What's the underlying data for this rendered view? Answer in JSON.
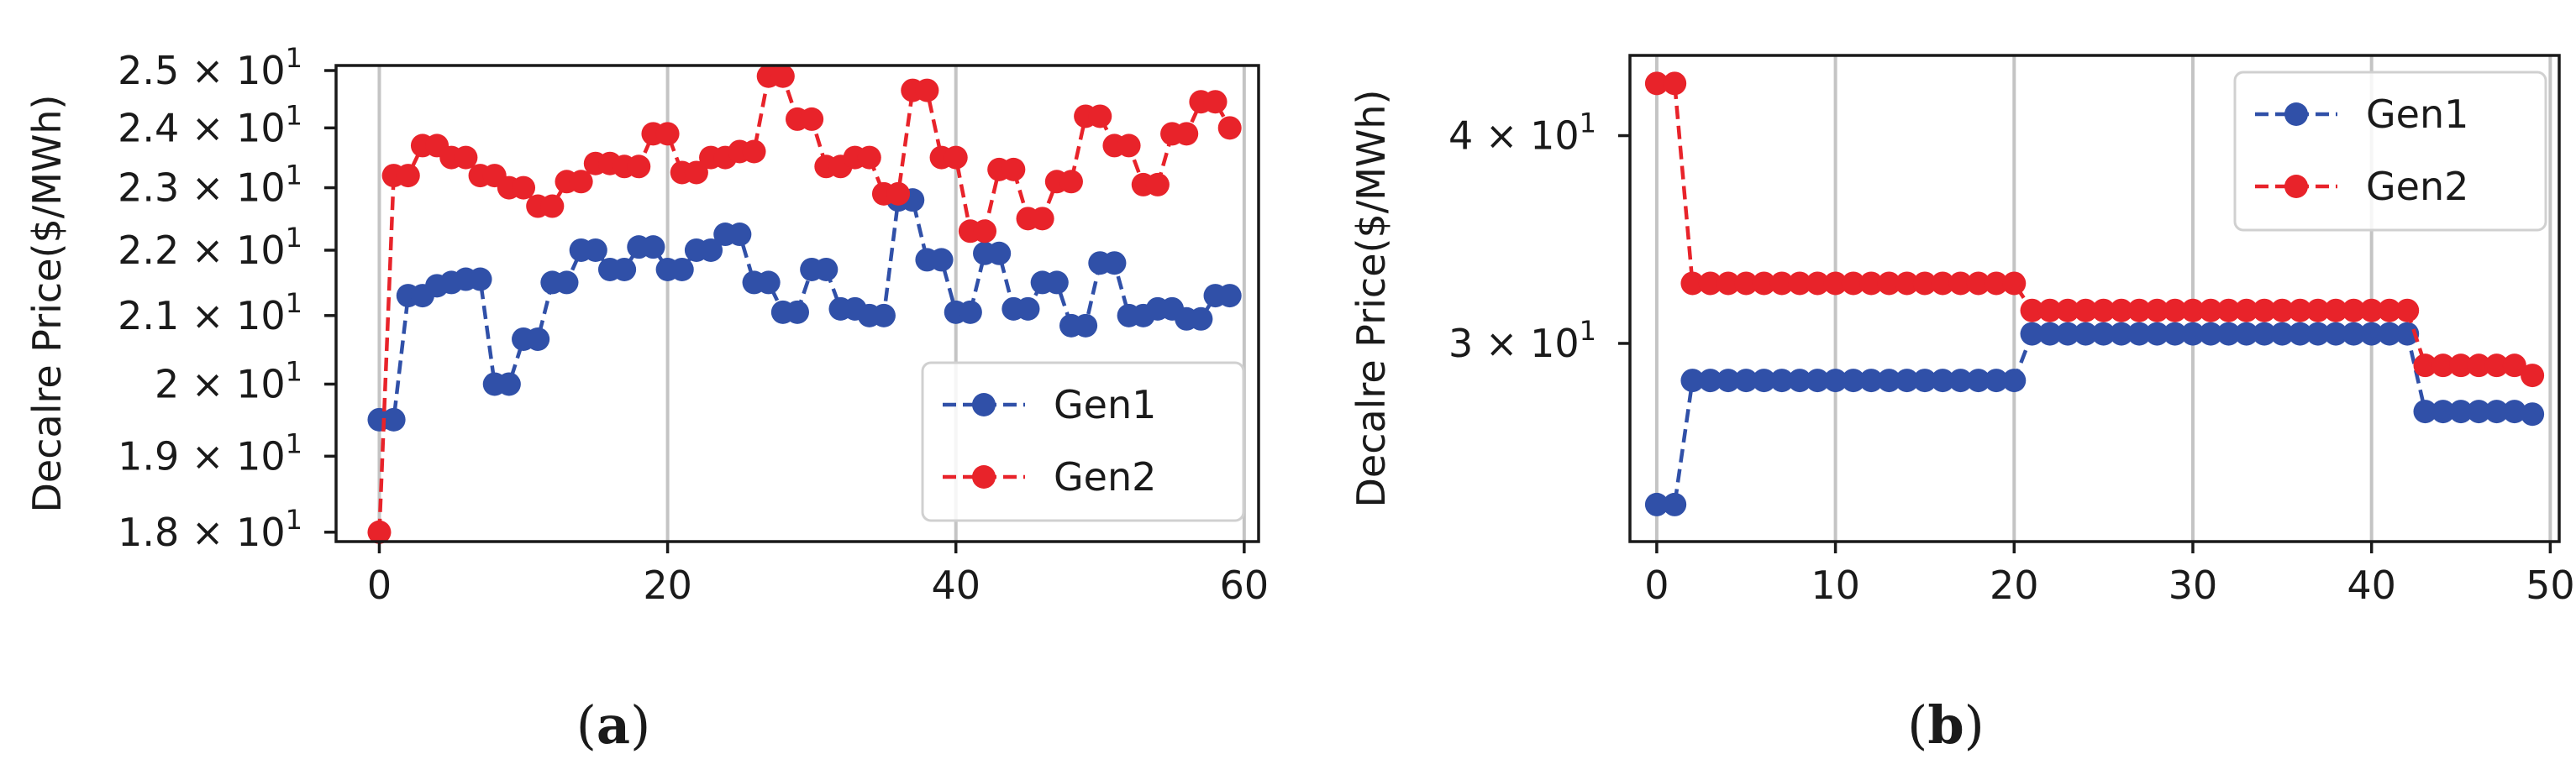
{
  "chart_data": [
    {
      "type": "line",
      "panel_label": "a",
      "title": "",
      "xlabel": "",
      "ylabel": "Decalre Price($/MWh)",
      "yscale": "log",
      "xlim": [
        -3,
        61
      ],
      "ylim": [
        17.88,
        25.09
      ],
      "xticks": [
        0,
        20,
        40,
        60
      ],
      "yticks": [
        {
          "value": 18,
          "mantissa": "1.8"
        },
        {
          "value": 19,
          "mantissa": "1.9"
        },
        {
          "value": 20,
          "mantissa": "2"
        },
        {
          "value": 21,
          "mantissa": "2.1"
        },
        {
          "value": 22,
          "mantissa": "2.2"
        },
        {
          "value": 23,
          "mantissa": "2.3"
        },
        {
          "value": 24,
          "mantissa": "2.4"
        },
        {
          "value": 25,
          "mantissa": "2.5"
        }
      ],
      "tick_base": "× 10",
      "tick_exponent": "1",
      "grid": "x",
      "legend": "lower-right",
      "series": [
        {
          "name": "Gen1",
          "color": "#3050a8",
          "x": [
            0,
            1,
            2,
            3,
            4,
            5,
            6,
            7,
            8,
            9,
            10,
            11,
            12,
            13,
            14,
            15,
            16,
            17,
            18,
            19,
            20,
            21,
            22,
            23,
            24,
            25,
            26,
            27,
            28,
            29,
            30,
            31,
            32,
            33,
            34,
            35,
            36,
            37,
            38,
            39,
            40,
            41,
            42,
            43,
            44,
            45,
            46,
            47,
            48,
            49,
            50,
            51,
            52,
            53,
            54,
            55,
            56,
            57,
            58,
            59
          ],
          "y": [
            19.5,
            19.5,
            21.3,
            21.3,
            21.45,
            21.5,
            21.55,
            21.55,
            20,
            20,
            20.65,
            20.65,
            21.5,
            21.5,
            22,
            22,
            21.7,
            21.7,
            22.05,
            22.05,
            21.7,
            21.7,
            22,
            22,
            22.25,
            22.25,
            21.5,
            21.5,
            21.05,
            21.05,
            21.7,
            21.7,
            21.1,
            21.1,
            21.0,
            21.0,
            22.8,
            22.8,
            21.85,
            21.85,
            21.05,
            21.05,
            21.95,
            21.95,
            21.1,
            21.1,
            21.5,
            21.5,
            20.85,
            20.85,
            21.8,
            21.8,
            21.0,
            21.0,
            21.1,
            21.1,
            20.95,
            20.95,
            21.3,
            21.3
          ]
        },
        {
          "name": "Gen2",
          "color": "#e8232a",
          "x": [
            0,
            1,
            2,
            3,
            4,
            5,
            6,
            7,
            8,
            9,
            10,
            11,
            12,
            13,
            14,
            15,
            16,
            17,
            18,
            19,
            20,
            21,
            22,
            23,
            24,
            25,
            26,
            27,
            28,
            29,
            30,
            31,
            32,
            33,
            34,
            35,
            36,
            37,
            38,
            39,
            40,
            41,
            42,
            43,
            44,
            45,
            46,
            47,
            48,
            49,
            50,
            51,
            52,
            53,
            54,
            55,
            56,
            57,
            58,
            59
          ],
          "y": [
            18,
            23.2,
            23.2,
            23.7,
            23.7,
            23.5,
            23.5,
            23.2,
            23.2,
            23.0,
            23.0,
            22.7,
            22.7,
            23.1,
            23.1,
            23.4,
            23.4,
            23.35,
            23.35,
            23.9,
            23.9,
            23.25,
            23.25,
            23.5,
            23.5,
            23.6,
            23.6,
            24.9,
            24.9,
            24.15,
            24.15,
            23.35,
            23.35,
            23.5,
            23.5,
            22.9,
            22.9,
            24.65,
            24.65,
            23.5,
            23.5,
            22.3,
            22.3,
            23.3,
            23.3,
            22.5,
            22.5,
            23.1,
            23.1,
            24.2,
            24.2,
            23.7,
            23.7,
            23.05,
            23.05,
            23.9,
            23.9,
            24.45,
            24.45,
            24.0
          ]
        }
      ]
    },
    {
      "type": "line",
      "panel_label": "b",
      "title": "",
      "xlabel": "",
      "ylabel": "Decalre Price($/MWh)",
      "yscale": "log",
      "xlim": [
        -1.5,
        50.5
      ],
      "ylim": [
        22.8,
        44.7
      ],
      "xticks": [
        0,
        10,
        20,
        30,
        40,
        50
      ],
      "yticks": [
        {
          "value": 30,
          "mantissa": "3"
        },
        {
          "value": 40,
          "mantissa": "4"
        }
      ],
      "tick_base": "× 10",
      "tick_exponent": "1",
      "grid": "x",
      "legend": "upper-right",
      "series": [
        {
          "name": "Gen1",
          "color": "#3050a8",
          "x": [
            0,
            1,
            2,
            3,
            4,
            5,
            6,
            7,
            8,
            9,
            10,
            11,
            12,
            13,
            14,
            15,
            16,
            17,
            18,
            19,
            20,
            21,
            22,
            23,
            24,
            25,
            26,
            27,
            28,
            29,
            30,
            31,
            32,
            33,
            34,
            35,
            36,
            37,
            38,
            39,
            40,
            41,
            42,
            43,
            44,
            45,
            46,
            47,
            48,
            49
          ],
          "y": [
            24,
            24,
            28.5,
            28.5,
            28.5,
            28.5,
            28.5,
            28.5,
            28.5,
            28.5,
            28.5,
            28.5,
            28.5,
            28.5,
            28.5,
            28.5,
            28.5,
            28.5,
            28.5,
            28.5,
            28.5,
            30.4,
            30.4,
            30.4,
            30.4,
            30.4,
            30.4,
            30.4,
            30.4,
            30.4,
            30.4,
            30.4,
            30.4,
            30.4,
            30.4,
            30.4,
            30.4,
            30.4,
            30.4,
            30.4,
            30.4,
            30.4,
            30.4,
            27.3,
            27.3,
            27.3,
            27.3,
            27.3,
            27.3,
            27.2
          ]
        },
        {
          "name": "Gen2",
          "color": "#e8232a",
          "x": [
            0,
            1,
            2,
            3,
            4,
            5,
            6,
            7,
            8,
            9,
            10,
            11,
            12,
            13,
            14,
            15,
            16,
            17,
            18,
            19,
            20,
            21,
            22,
            23,
            24,
            25,
            26,
            27,
            28,
            29,
            30,
            31,
            32,
            33,
            34,
            35,
            36,
            37,
            38,
            39,
            40,
            41,
            42,
            43,
            44,
            45,
            46,
            47,
            48,
            49
          ],
          "y": [
            43,
            43,
            32.6,
            32.6,
            32.6,
            32.6,
            32.6,
            32.6,
            32.6,
            32.6,
            32.6,
            32.6,
            32.6,
            32.6,
            32.6,
            32.6,
            32.6,
            32.6,
            32.6,
            32.6,
            32.6,
            31.4,
            31.4,
            31.4,
            31.4,
            31.4,
            31.4,
            31.4,
            31.4,
            31.4,
            31.4,
            31.4,
            31.4,
            31.4,
            31.4,
            31.4,
            31.4,
            31.4,
            31.4,
            31.4,
            31.4,
            31.4,
            31.4,
            29.1,
            29.1,
            29.1,
            29.1,
            29.1,
            29.1,
            28.7
          ]
        }
      ]
    }
  ],
  "captions": [
    {
      "open": "(",
      "letter": "a",
      "close": ")"
    },
    {
      "open": "(",
      "letter": "b",
      "close": ")"
    }
  ]
}
